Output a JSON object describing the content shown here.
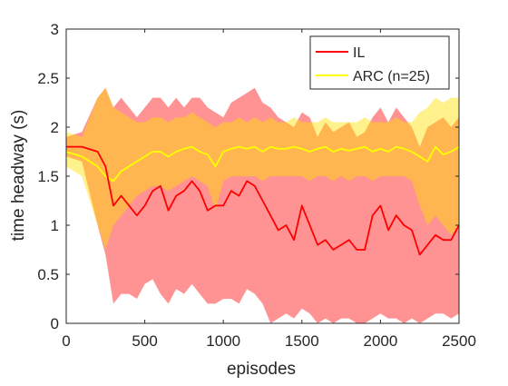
{
  "chart_data": {
    "type": "line",
    "title": "",
    "xlabel": "episodes",
    "ylabel": "time headway (s)",
    "xlim": [
      0,
      2500
    ],
    "ylim": [
      0,
      3
    ],
    "xticks": [
      0,
      500,
      1000,
      1500,
      2000,
      2500
    ],
    "yticks": [
      0,
      0.5,
      1,
      1.5,
      2,
      2.5,
      3
    ],
    "legend_position": "top-right",
    "grid": false,
    "colors": {
      "IL": "#ff0000",
      "IL_band": "#ff8080",
      "ARC": "#ffff00",
      "ARC_band": "#ffe000"
    },
    "series": [
      {
        "name": "IL",
        "x": [
          0,
          100,
          200,
          250,
          300,
          350,
          400,
          450,
          500,
          550,
          600,
          650,
          700,
          750,
          800,
          850,
          900,
          950,
          1000,
          1050,
          1100,
          1150,
          1200,
          1250,
          1300,
          1350,
          1400,
          1450,
          1500,
          1550,
          1600,
          1650,
          1700,
          1750,
          1800,
          1850,
          1900,
          1950,
          2000,
          2050,
          2100,
          2150,
          2200,
          2250,
          2300,
          2350,
          2400,
          2450,
          2500
        ],
        "y": [
          1.8,
          1.8,
          1.75,
          1.6,
          1.2,
          1.3,
          1.2,
          1.1,
          1.2,
          1.35,
          1.4,
          1.15,
          1.3,
          1.35,
          1.45,
          1.35,
          1.15,
          1.2,
          1.2,
          1.35,
          1.3,
          1.45,
          1.4,
          1.25,
          1.1,
          0.95,
          1.0,
          0.85,
          1.2,
          1.0,
          0.8,
          0.85,
          0.75,
          0.8,
          0.85,
          0.75,
          0.75,
          1.1,
          1.2,
          0.95,
          1.1,
          1.0,
          0.95,
          0.7,
          0.8,
          0.9,
          0.85,
          0.85,
          1.0
        ],
        "lower": [
          1.7,
          1.65,
          1.0,
          0.7,
          0.2,
          0.3,
          0.3,
          0.25,
          0.4,
          0.45,
          0.3,
          0.2,
          0.35,
          0.3,
          0.4,
          0.3,
          0.2,
          0.2,
          0.25,
          0.25,
          0.2,
          0.35,
          0.3,
          0.2,
          0.0,
          0.05,
          0.1,
          0.05,
          0.15,
          0.1,
          0.0,
          0.05,
          0.0,
          0.05,
          0.05,
          0.0,
          0.0,
          0.05,
          0.1,
          0.05,
          0.05,
          0.0,
          0.05,
          0.0,
          0.05,
          0.1,
          0.1,
          0.05,
          0.1
        ],
        "upper": [
          1.9,
          1.95,
          2.3,
          2.4,
          2.2,
          2.3,
          2.2,
          2.1,
          2.2,
          2.3,
          2.3,
          2.2,
          2.3,
          2.2,
          2.3,
          2.3,
          2.2,
          2.15,
          2.1,
          2.25,
          2.3,
          2.35,
          2.4,
          2.25,
          2.2,
          2.1,
          2.05,
          2.0,
          2.15,
          2.1,
          1.9,
          2.05,
          1.95,
          2.0,
          2.05,
          1.9,
          1.95,
          2.1,
          2.2,
          2.05,
          2.2,
          2.1,
          2.0,
          1.8,
          2.0,
          2.05,
          2.1,
          2.0,
          2.1
        ]
      },
      {
        "name": "ARC (n=25)",
        "x": [
          0,
          100,
          200,
          250,
          300,
          350,
          400,
          450,
          500,
          550,
          600,
          650,
          700,
          750,
          800,
          850,
          900,
          950,
          1000,
          1050,
          1100,
          1150,
          1200,
          1250,
          1300,
          1350,
          1400,
          1450,
          1500,
          1550,
          1600,
          1650,
          1700,
          1750,
          1800,
          1850,
          1900,
          1950,
          2000,
          2050,
          2100,
          2150,
          2200,
          2250,
          2300,
          2350,
          2400,
          2450,
          2500
        ],
        "y": [
          1.75,
          1.7,
          1.6,
          1.5,
          1.45,
          1.55,
          1.6,
          1.65,
          1.7,
          1.75,
          1.75,
          1.7,
          1.75,
          1.78,
          1.8,
          1.75,
          1.72,
          1.6,
          1.75,
          1.78,
          1.8,
          1.78,
          1.8,
          1.75,
          1.8,
          1.78,
          1.78,
          1.8,
          1.78,
          1.75,
          1.78,
          1.8,
          1.75,
          1.78,
          1.76,
          1.78,
          1.8,
          1.75,
          1.78,
          1.75,
          1.8,
          1.78,
          1.75,
          1.7,
          1.65,
          1.8,
          1.72,
          1.75,
          1.8
        ],
        "lower": [
          1.6,
          1.5,
          1.0,
          0.75,
          1.0,
          1.1,
          1.2,
          1.3,
          1.35,
          1.4,
          1.4,
          1.35,
          1.4,
          1.45,
          1.5,
          1.45,
          1.4,
          1.15,
          1.45,
          1.5,
          1.5,
          1.5,
          1.5,
          1.45,
          1.5,
          1.5,
          1.5,
          1.5,
          1.5,
          1.45,
          1.5,
          1.5,
          1.45,
          1.5,
          1.45,
          1.5,
          1.5,
          1.45,
          1.5,
          1.5,
          1.5,
          1.5,
          1.45,
          1.2,
          1.0,
          1.1,
          1.0,
          0.9,
          1.0
        ],
        "upper": [
          1.95,
          1.9,
          2.3,
          2.4,
          2.2,
          2.15,
          2.1,
          2.05,
          2.05,
          2.1,
          2.1,
          2.05,
          2.1,
          2.1,
          2.15,
          2.1,
          2.05,
          2.0,
          2.05,
          2.05,
          2.1,
          2.05,
          2.1,
          2.05,
          2.1,
          2.05,
          2.05,
          2.1,
          2.05,
          2.05,
          2.05,
          2.1,
          2.05,
          2.05,
          2.05,
          2.05,
          2.1,
          2.05,
          2.05,
          2.05,
          2.1,
          2.05,
          2.05,
          2.15,
          2.2,
          2.3,
          2.25,
          2.3,
          2.3
        ]
      }
    ]
  }
}
